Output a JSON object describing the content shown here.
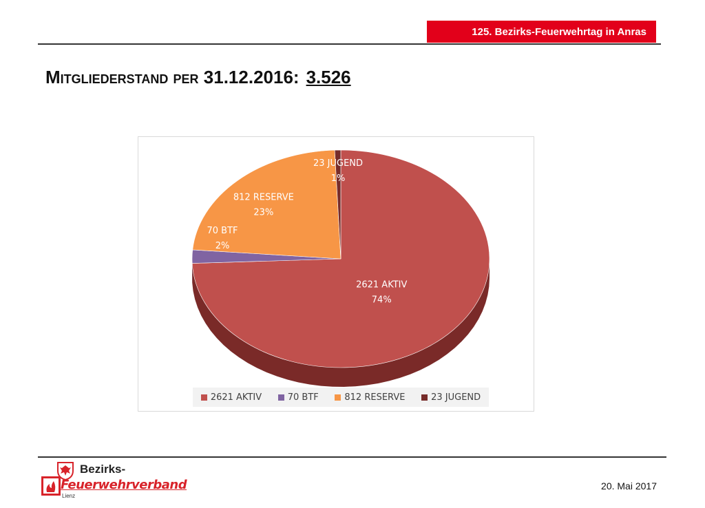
{
  "header": {
    "event": "125. Bezirks-Feuerwehrtag in Anras"
  },
  "title": {
    "text": "Mitgliederstand per 31.12.2016:",
    "total": "3.526"
  },
  "chart_data": {
    "type": "pie",
    "title": "",
    "categories": [
      "AKTIV",
      "BTF",
      "RESERVE",
      "JUGEND"
    ],
    "values": [
      2621,
      70,
      812,
      23
    ],
    "percent_labels": [
      "74%",
      "2%",
      "23%",
      "1%"
    ],
    "slice_labels": [
      "2621 AKTIV",
      "70 BTF",
      "812 RESERVE",
      "23 JUGEND"
    ],
    "legend_labels": [
      "2621 AKTIV",
      "70 BTF",
      "812 RESERVE",
      "23 JUGEND"
    ],
    "legend_placement": "bottom",
    "three_d": true,
    "colors": [
      "#c0504d",
      "#8064a2",
      "#f79646",
      "#772c2a"
    ],
    "side_colors": [
      "#7a2a28",
      "#4f3d68",
      "#b36a2e",
      "#4a1a19"
    ]
  },
  "logo": {
    "line1": "Bezirks-",
    "line2": "Feuerwehrverband",
    "line3": "Lienz"
  },
  "footer": {
    "date": "20. Mai 2017"
  }
}
